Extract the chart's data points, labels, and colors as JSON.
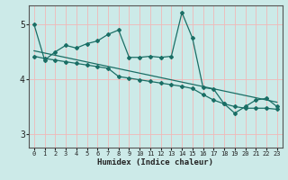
{
  "title": "",
  "xlabel": "Humidex (Indice chaleur)",
  "ylabel": "",
  "bg_color": "#cceae8",
  "grid_color_v": "#f0b8b8",
  "grid_color_h": "#f0b8b8",
  "line_color": "#1a6e65",
  "xlim": [
    -0.5,
    23.5
  ],
  "ylim": [
    2.75,
    5.35
  ],
  "yticks": [
    3,
    4,
    5
  ],
  "xticks": [
    0,
    1,
    2,
    3,
    4,
    5,
    6,
    7,
    8,
    9,
    10,
    11,
    12,
    13,
    14,
    15,
    16,
    17,
    18,
    19,
    20,
    21,
    22,
    23
  ],
  "line1_x": [
    0,
    1,
    2,
    3,
    4,
    5,
    6,
    7,
    8,
    9,
    10,
    11,
    12,
    13,
    14,
    15,
    16,
    17,
    18,
    19,
    20,
    21,
    22,
    23
  ],
  "line1_y": [
    5.0,
    4.35,
    4.5,
    4.62,
    4.57,
    4.65,
    4.7,
    4.82,
    4.9,
    4.4,
    4.4,
    4.42,
    4.4,
    4.42,
    5.22,
    4.75,
    3.85,
    3.82,
    3.55,
    3.38,
    3.5,
    3.62,
    3.65,
    3.5
  ],
  "line2_x": [
    0,
    1,
    2,
    3,
    4,
    5,
    6,
    7,
    8,
    9,
    10,
    11,
    12,
    13,
    14,
    15,
    16,
    17,
    18,
    19,
    20,
    21,
    22,
    23
  ],
  "line2_y": [
    4.42,
    4.38,
    4.35,
    4.32,
    4.29,
    4.26,
    4.23,
    4.2,
    4.05,
    4.02,
    3.99,
    3.96,
    3.93,
    3.9,
    3.87,
    3.83,
    3.72,
    3.62,
    3.55,
    3.5,
    3.47,
    3.47,
    3.47,
    3.45
  ],
  "line3_x": [
    0,
    23
  ],
  "line3_y": [
    4.52,
    3.58
  ]
}
